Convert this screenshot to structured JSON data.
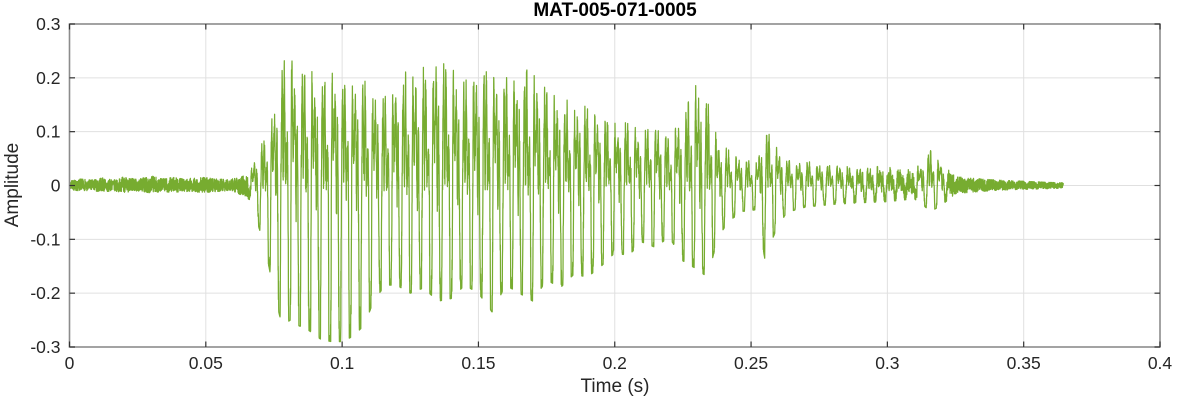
{
  "chart_data": {
    "type": "line",
    "subtype": "audio-waveform",
    "title": "MAT-005-071-0005",
    "xlabel": "Time (s)",
    "ylabel": "Amplitude",
    "xlim": [
      0,
      0.4
    ],
    "ylim": [
      -0.3,
      0.3
    ],
    "xticks": [
      0,
      0.05,
      0.1,
      0.15,
      0.2,
      0.25,
      0.3,
      0.35,
      0.4
    ],
    "xtick_labels": [
      "0",
      "0.05",
      "0.1",
      "0.15",
      "0.2",
      "0.25",
      "0.3",
      "0.35",
      "0.4"
    ],
    "yticks": [
      -0.3,
      -0.2,
      -0.1,
      0,
      0.1,
      0.2,
      0.3
    ],
    "ytick_labels": [
      "-0.3",
      "-0.2",
      "-0.1",
      "0",
      "0.1",
      "0.2",
      "0.3"
    ],
    "grid": true,
    "box": true,
    "line_color": "#77AC30",
    "signal": {
      "end_time_s": 0.3645,
      "pitch_hz": 270,
      "sample_dt_s": 4e-05,
      "envelope_keypoints": [
        [
          0.0,
          0.008,
          -0.008
        ],
        [
          0.004,
          0.012,
          -0.01
        ],
        [
          0.008,
          0.01,
          -0.009
        ],
        [
          0.012,
          0.014,
          -0.012
        ],
        [
          0.016,
          0.01,
          -0.01
        ],
        [
          0.02,
          0.016,
          -0.013
        ],
        [
          0.025,
          0.011,
          -0.01
        ],
        [
          0.03,
          0.018,
          -0.014
        ],
        [
          0.034,
          0.012,
          -0.011
        ],
        [
          0.038,
          0.015,
          -0.013
        ],
        [
          0.042,
          0.012,
          -0.011
        ],
        [
          0.046,
          0.014,
          -0.012
        ],
        [
          0.05,
          0.015,
          -0.013
        ],
        [
          0.054,
          0.012,
          -0.011
        ],
        [
          0.058,
          0.011,
          -0.01
        ],
        [
          0.062,
          0.014,
          -0.015
        ],
        [
          0.066,
          0.022,
          -0.026
        ],
        [
          0.069,
          0.065,
          -0.07
        ],
        [
          0.072,
          0.1,
          -0.12
        ],
        [
          0.075,
          0.16,
          -0.2
        ],
        [
          0.078,
          0.23,
          -0.26
        ],
        [
          0.081,
          0.27,
          -0.25
        ],
        [
          0.084,
          0.21,
          -0.26
        ],
        [
          0.088,
          0.225,
          -0.27
        ],
        [
          0.092,
          0.215,
          -0.285
        ],
        [
          0.096,
          0.22,
          -0.29
        ],
        [
          0.1,
          0.215,
          -0.29
        ],
        [
          0.104,
          0.205,
          -0.28
        ],
        [
          0.108,
          0.195,
          -0.26
        ],
        [
          0.112,
          0.185,
          -0.21
        ],
        [
          0.116,
          0.18,
          -0.185
        ],
        [
          0.12,
          0.205,
          -0.185
        ],
        [
          0.125,
          0.22,
          -0.2
        ],
        [
          0.13,
          0.23,
          -0.19
        ],
        [
          0.135,
          0.25,
          -0.215
        ],
        [
          0.14,
          0.225,
          -0.21
        ],
        [
          0.145,
          0.2,
          -0.185
        ],
        [
          0.15,
          0.23,
          -0.2
        ],
        [
          0.155,
          0.215,
          -0.235
        ],
        [
          0.16,
          0.21,
          -0.185
        ],
        [
          0.165,
          0.22,
          -0.2
        ],
        [
          0.17,
          0.23,
          -0.215
        ],
        [
          0.175,
          0.185,
          -0.175
        ],
        [
          0.18,
          0.17,
          -0.19
        ],
        [
          0.185,
          0.15,
          -0.165
        ],
        [
          0.19,
          0.16,
          -0.17
        ],
        [
          0.195,
          0.135,
          -0.15
        ],
        [
          0.2,
          0.12,
          -0.125
        ],
        [
          0.205,
          0.125,
          -0.13
        ],
        [
          0.21,
          0.105,
          -0.105
        ],
        [
          0.215,
          0.12,
          -0.115
        ],
        [
          0.22,
          0.095,
          -0.095
        ],
        [
          0.225,
          0.135,
          -0.14
        ],
        [
          0.23,
          0.2,
          -0.155
        ],
        [
          0.234,
          0.165,
          -0.17
        ],
        [
          0.238,
          0.09,
          -0.095
        ],
        [
          0.242,
          0.065,
          -0.065
        ],
        [
          0.247,
          0.05,
          -0.048
        ],
        [
          0.252,
          0.045,
          -0.045
        ],
        [
          0.255,
          0.115,
          -0.135
        ],
        [
          0.259,
          0.075,
          -0.085
        ],
        [
          0.263,
          0.05,
          -0.05
        ],
        [
          0.27,
          0.045,
          -0.04
        ],
        [
          0.28,
          0.04,
          -0.035
        ],
        [
          0.29,
          0.036,
          -0.032
        ],
        [
          0.3,
          0.035,
          -0.03
        ],
        [
          0.31,
          0.028,
          -0.025
        ],
        [
          0.316,
          0.07,
          -0.048
        ],
        [
          0.32,
          0.042,
          -0.036
        ],
        [
          0.325,
          0.016,
          -0.015
        ],
        [
          0.332,
          0.013,
          -0.012
        ],
        [
          0.34,
          0.01,
          -0.009
        ],
        [
          0.35,
          0.008,
          -0.007
        ],
        [
          0.358,
          0.006,
          -0.006
        ],
        [
          0.3645,
          0.005,
          -0.005
        ]
      ]
    }
  },
  "colors": {
    "background": "#FFFFFF",
    "waveform": "#77AC30",
    "grid": "#E0E0E0",
    "box": "#8C8C8C",
    "tick": "#333333",
    "tick_label": "#262626",
    "axis_label": "#262626",
    "title": "#000000"
  }
}
